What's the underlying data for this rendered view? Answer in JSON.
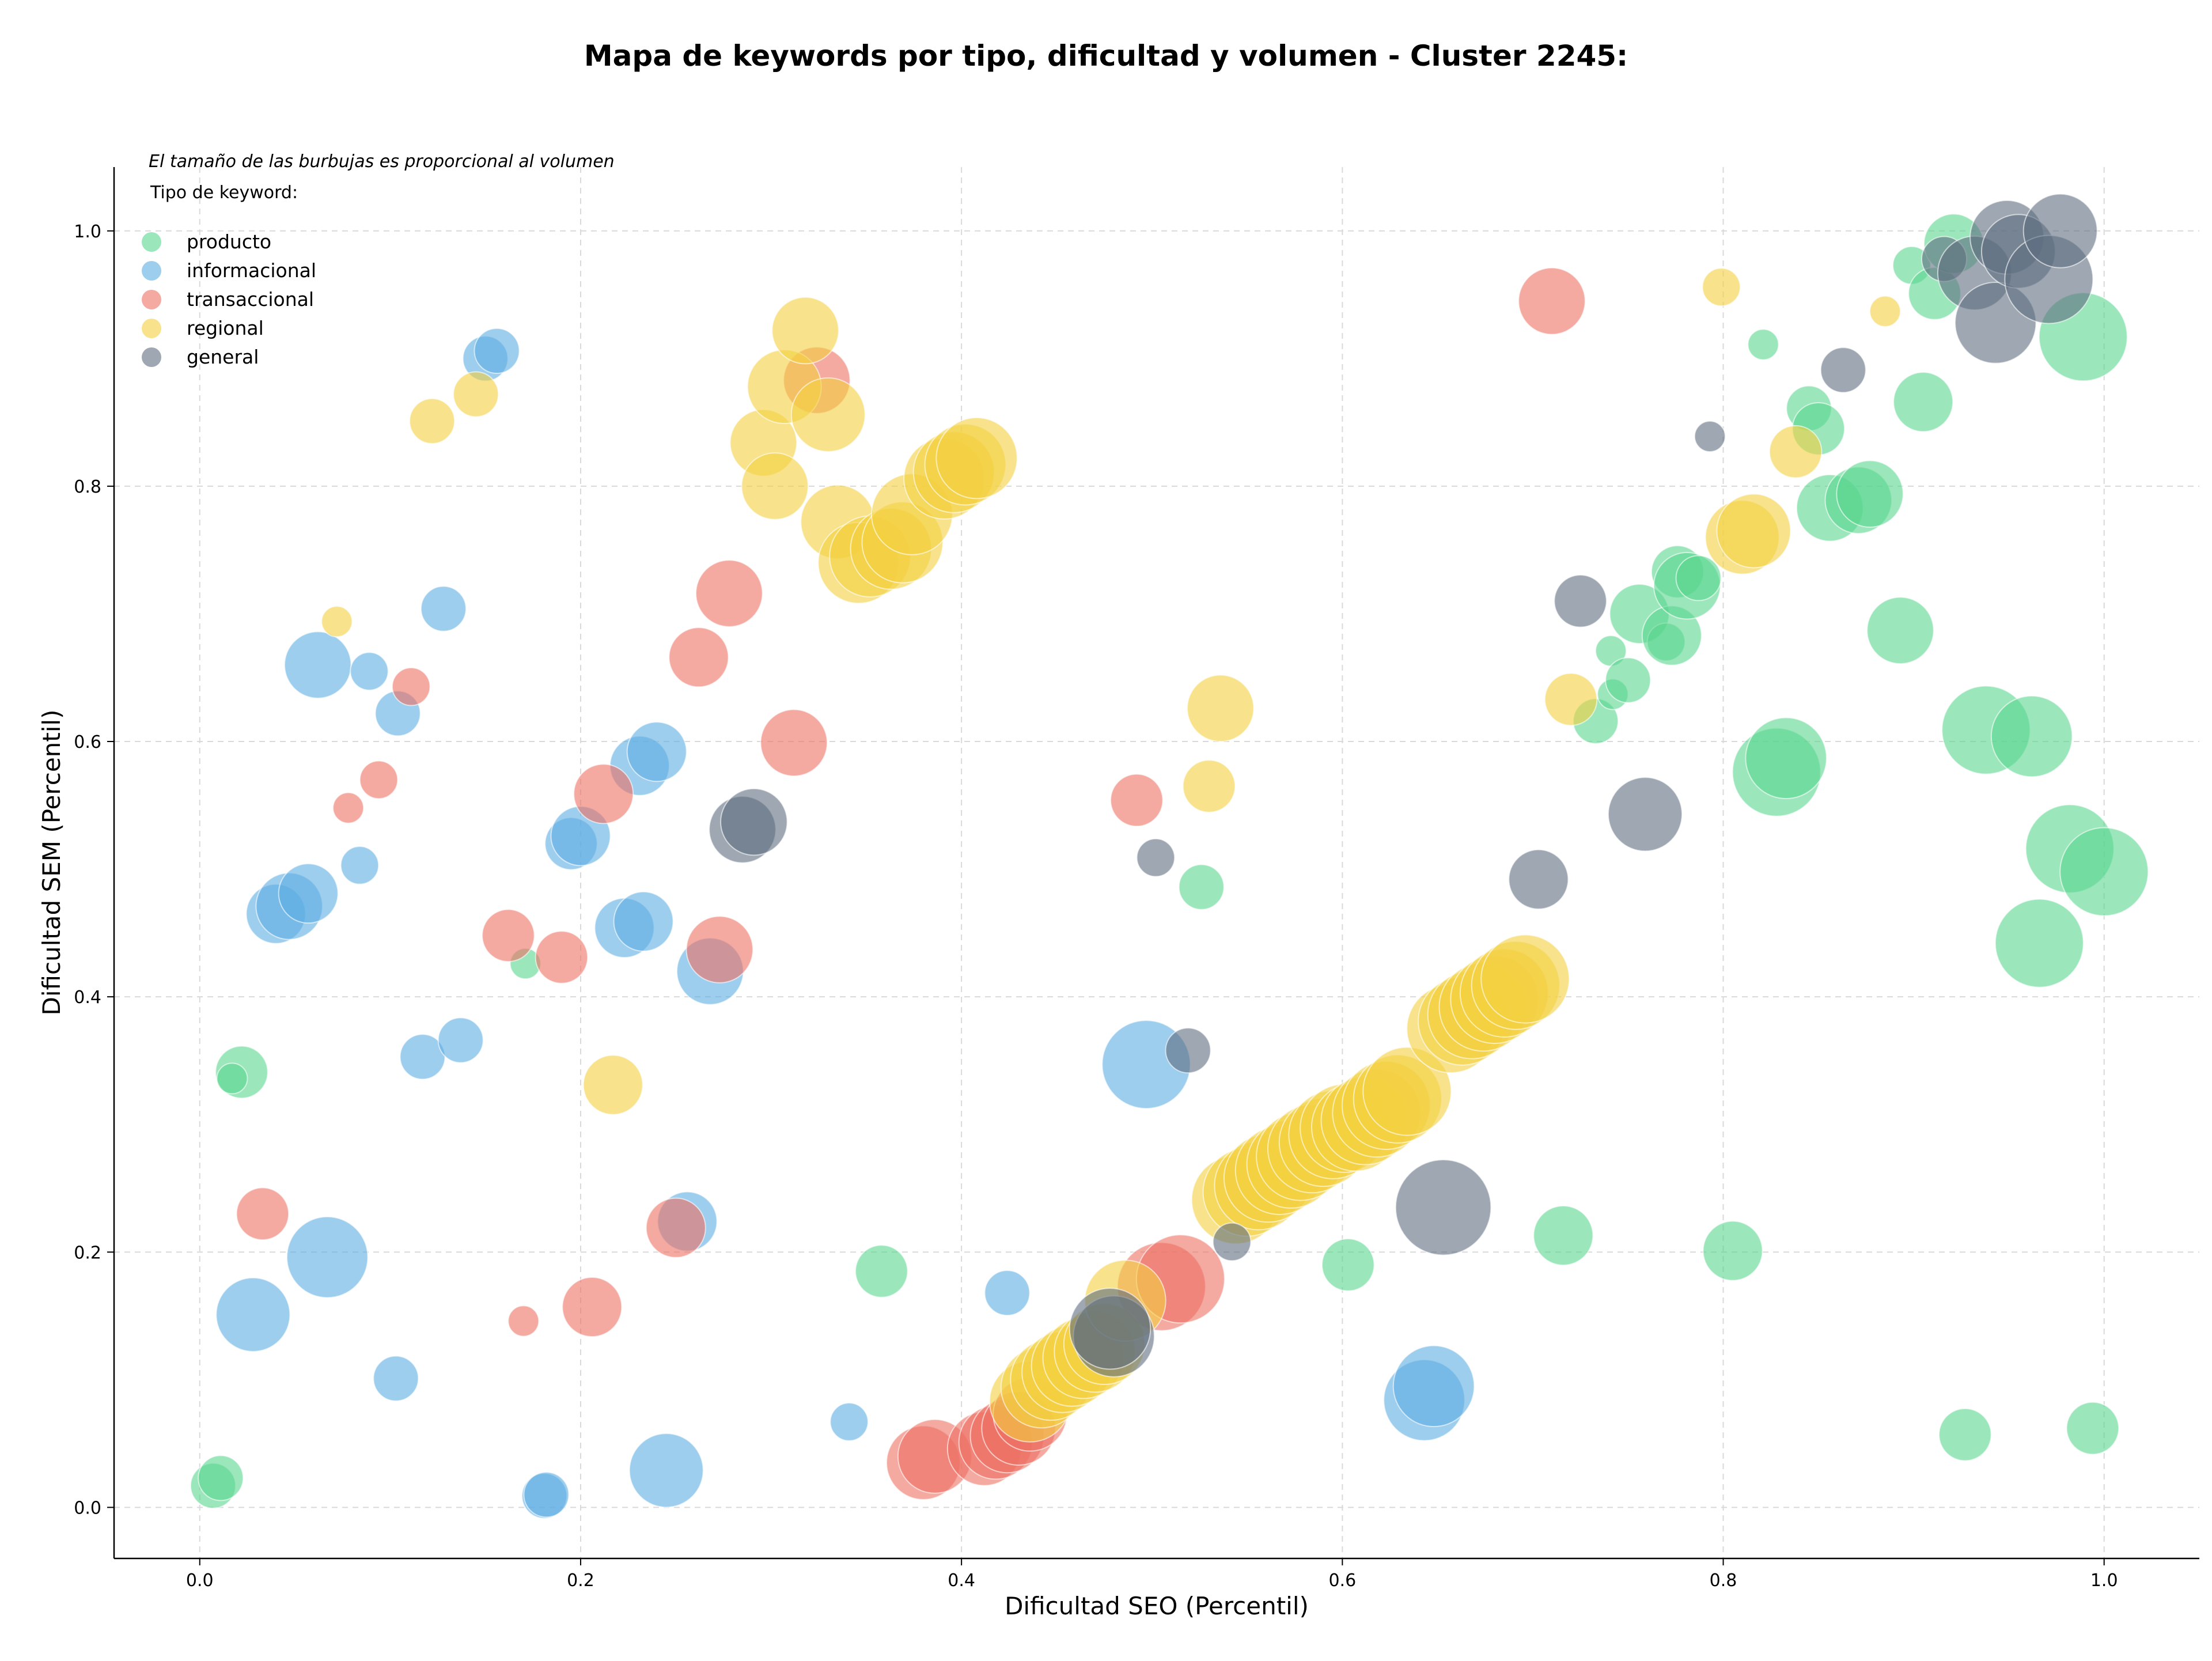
{
  "chart_data": {
    "type": "scatter",
    "title": "Mapa de keywords por tipo, dificultad y volumen - Cluster 2245:",
    "xlabel": "Dificultad SEO (Percentil)",
    "ylabel": "Dificultad SEM (Percentil)",
    "xlim": [
      -0.045,
      1.05
    ],
    "ylim": [
      -0.04,
      1.05
    ],
    "xticks": [
      "0.0",
      "0.2",
      "0.4",
      "0.6",
      "0.8",
      "1.0"
    ],
    "yticks": [
      "0.0",
      "0.2",
      "0.4",
      "0.6",
      "0.8",
      "1.0"
    ],
    "grid": true,
    "annotation": "El tamaño de las burbujas es proporcional al volumen",
    "legend_title": "Tipo de keyword:",
    "legend_position": "top-left",
    "series": [
      {
        "name": "producto",
        "color": "#58d68d",
        "points": [
          [
            0.007,
            0.017,
            2
          ],
          [
            0.011,
            0.023,
            2
          ],
          [
            0.022,
            0.341,
            2.5
          ],
          [
            0.017,
            0.336,
            1
          ],
          [
            0.171,
            0.426,
            1
          ],
          [
            0.358,
            0.185,
            2.5
          ],
          [
            0.526,
            0.486,
            2
          ],
          [
            0.603,
            0.19,
            2.5
          ],
          [
            0.716,
            0.213,
            3
          ],
          [
            0.733,
            0.616,
            2
          ],
          [
            0.741,
            0.671,
            1
          ],
          [
            0.742,
            0.637,
            1
          ],
          [
            0.75,
            0.648,
            2
          ],
          [
            0.756,
            0.7,
            3
          ],
          [
            0.77,
            0.678,
            1.5
          ],
          [
            0.773,
            0.683,
            3
          ],
          [
            0.776,
            0.733,
            2.5
          ],
          [
            0.781,
            0.722,
            3.5
          ],
          [
            0.787,
            0.728,
            2
          ],
          [
            0.805,
            0.201,
            3
          ],
          [
            0.821,
            0.911,
            1
          ],
          [
            0.828,
            0.576,
            5
          ],
          [
            0.833,
            0.587,
            4.5
          ],
          [
            0.845,
            0.861,
            2
          ],
          [
            0.85,
            0.845,
            2.5
          ],
          [
            0.856,
            0.783,
            3.5
          ],
          [
            0.871,
            0.789,
            3.5
          ],
          [
            0.877,
            0.794,
            3.5
          ],
          [
            0.893,
            0.687,
            3.5
          ],
          [
            0.899,
            0.973,
            1.5
          ],
          [
            0.905,
            0.866,
            3
          ],
          [
            0.911,
            0.951,
            2.5
          ],
          [
            0.921,
            0.99,
            3
          ],
          [
            0.927,
            0.057,
            2.5
          ],
          [
            0.938,
            0.609,
            5
          ],
          [
            0.962,
            0.604,
            4.5
          ],
          [
            0.966,
            0.442,
            5
          ],
          [
            0.982,
            0.516,
            5
          ],
          [
            0.989,
            0.917,
            5
          ],
          [
            0.994,
            0.062,
            2.5
          ],
          [
            1.0,
            0.498,
            5
          ]
        ]
      },
      {
        "name": "informacional",
        "color": "#5dade2",
        "points": [
          [
            0.028,
            0.151,
            4
          ],
          [
            0.04,
            0.465,
            3
          ],
          [
            0.047,
            0.471,
            3.5
          ],
          [
            0.057,
            0.481,
            3
          ],
          [
            0.062,
            0.66,
            3.5
          ],
          [
            0.067,
            0.196,
            4.5
          ],
          [
            0.084,
            0.503,
            1.5
          ],
          [
            0.089,
            0.655,
            1.5
          ],
          [
            0.103,
            0.101,
            2
          ],
          [
            0.104,
            0.622,
            2
          ],
          [
            0.128,
            0.704,
            2
          ],
          [
            0.117,
            0.353,
            2
          ],
          [
            0.137,
            0.366,
            2
          ],
          [
            0.15,
            0.9,
            2
          ],
          [
            0.156,
            0.906,
            2
          ],
          [
            0.181,
            0.009,
            2
          ],
          [
            0.182,
            0.01,
            2
          ],
          [
            0.195,
            0.52,
            2.5
          ],
          [
            0.2,
            0.526,
            3
          ],
          [
            0.223,
            0.454,
            3
          ],
          [
            0.231,
            0.581,
            3
          ],
          [
            0.233,
            0.459,
            3
          ],
          [
            0.24,
            0.592,
            3
          ],
          [
            0.245,
            0.029,
            4
          ],
          [
            0.256,
            0.224,
            3
          ],
          [
            0.268,
            0.42,
            3.5
          ],
          [
            0.341,
            0.067,
            1.5
          ],
          [
            0.424,
            0.168,
            2
          ],
          [
            0.497,
            0.347,
            5
          ],
          [
            0.643,
            0.084,
            4.5
          ],
          [
            0.648,
            0.095,
            4.5
          ]
        ]
      },
      {
        "name": "transaccional",
        "color": "#ec7063",
        "points": [
          [
            0.033,
            0.23,
            2.5
          ],
          [
            0.078,
            0.548,
            1
          ],
          [
            0.094,
            0.57,
            1.5
          ],
          [
            0.111,
            0.643,
            1.5
          ],
          [
            0.162,
            0.448,
            2.5
          ],
          [
            0.17,
            0.146,
            1
          ],
          [
            0.19,
            0.431,
            2.5
          ],
          [
            0.206,
            0.157,
            3
          ],
          [
            0.212,
            0.559,
            3
          ],
          [
            0.25,
            0.219,
            3
          ],
          [
            0.262,
            0.666,
            3
          ],
          [
            0.273,
            0.437,
            3.5
          ],
          [
            0.278,
            0.716,
            3.5
          ],
          [
            0.312,
            0.599,
            3.5
          ],
          [
            0.324,
            0.883,
            3.5
          ],
          [
            0.38,
            0.035,
            4
          ],
          [
            0.386,
            0.04,
            4
          ],
          [
            0.412,
            0.046,
            4
          ],
          [
            0.418,
            0.051,
            4
          ],
          [
            0.424,
            0.056,
            4
          ],
          [
            0.43,
            0.062,
            4
          ],
          [
            0.436,
            0.073,
            4
          ],
          [
            0.492,
            0.554,
            2.5
          ],
          [
            0.505,
            0.173,
            5
          ],
          [
            0.515,
            0.179,
            5
          ],
          [
            0.71,
            0.945,
            3.5
          ]
        ]
      },
      {
        "name": "regional",
        "color": "#f4d03f",
        "points": [
          [
            0.072,
            0.694,
            1
          ],
          [
            0.122,
            0.851,
            2
          ],
          [
            0.145,
            0.872,
            2
          ],
          [
            0.217,
            0.331,
            3
          ],
          [
            0.296,
            0.834,
            3.5
          ],
          [
            0.302,
            0.8,
            3.5
          ],
          [
            0.307,
            0.878,
            4
          ],
          [
            0.318,
            0.922,
            3.5
          ],
          [
            0.33,
            0.856,
            4
          ],
          [
            0.335,
            0.772,
            4
          ],
          [
            0.346,
            0.74,
            4.5
          ],
          [
            0.352,
            0.745,
            4.5
          ],
          [
            0.363,
            0.751,
            4.5
          ],
          [
            0.369,
            0.756,
            4.5
          ],
          [
            0.374,
            0.778,
            4.5
          ],
          [
            0.391,
            0.806,
            4.5
          ],
          [
            0.396,
            0.811,
            4.5
          ],
          [
            0.402,
            0.817,
            4.5
          ],
          [
            0.408,
            0.822,
            4.5
          ],
          [
            0.436,
            0.083,
            4.5
          ],
          [
            0.442,
            0.094,
            4.5
          ],
          [
            0.447,
            0.1,
            4.5
          ],
          [
            0.453,
            0.106,
            4.5
          ],
          [
            0.458,
            0.111,
            4.5
          ],
          [
            0.464,
            0.117,
            4.5
          ],
          [
            0.47,
            0.122,
            4.5
          ],
          [
            0.475,
            0.128,
            4.5
          ],
          [
            0.486,
            0.162,
            4.5
          ],
          [
            0.53,
            0.565,
            2.5
          ],
          [
            0.536,
            0.626,
            3.5
          ],
          [
            0.544,
            0.241,
            5
          ],
          [
            0.55,
            0.247,
            5
          ],
          [
            0.556,
            0.252,
            5
          ],
          [
            0.561,
            0.258,
            5
          ],
          [
            0.567,
            0.264,
            5
          ],
          [
            0.573,
            0.269,
            5
          ],
          [
            0.578,
            0.275,
            5
          ],
          [
            0.584,
            0.281,
            5
          ],
          [
            0.59,
            0.286,
            5
          ],
          [
            0.595,
            0.292,
            5
          ],
          [
            0.601,
            0.297,
            5
          ],
          [
            0.607,
            0.298,
            5
          ],
          [
            0.612,
            0.303,
            5
          ],
          [
            0.618,
            0.309,
            5
          ],
          [
            0.623,
            0.315,
            5
          ],
          [
            0.629,
            0.32,
            5
          ],
          [
            0.634,
            0.326,
            5
          ],
          [
            0.657,
            0.375,
            5
          ],
          [
            0.663,
            0.381,
            5
          ],
          [
            0.668,
            0.386,
            5
          ],
          [
            0.674,
            0.392,
            5
          ],
          [
            0.68,
            0.398,
            5
          ],
          [
            0.685,
            0.403,
            5
          ],
          [
            0.691,
            0.409,
            5
          ],
          [
            0.696,
            0.414,
            5
          ],
          [
            0.72,
            0.633,
            2.5
          ],
          [
            0.799,
            0.956,
            1.5
          ],
          [
            0.81,
            0.76,
            4
          ],
          [
            0.816,
            0.765,
            4
          ],
          [
            0.838,
            0.827,
            2.5
          ],
          [
            0.885,
            0.937,
            1
          ]
        ]
      },
      {
        "name": "general",
        "color": "#5d6d7e",
        "points": [
          [
            0.285,
            0.531,
            3.5
          ],
          [
            0.291,
            0.537,
            3.5
          ],
          [
            0.48,
            0.134,
            4.5
          ],
          [
            0.478,
            0.14,
            4.5
          ],
          [
            0.502,
            0.509,
            1.5
          ],
          [
            0.519,
            0.358,
            2
          ],
          [
            0.542,
            0.208,
            1.5
          ],
          [
            0.653,
            0.235,
            5.5
          ],
          [
            0.703,
            0.492,
            3
          ],
          [
            0.725,
            0.71,
            2.5
          ],
          [
            0.759,
            0.543,
            4
          ],
          [
            0.793,
            0.839,
            1
          ],
          [
            0.863,
            0.891,
            2
          ],
          [
            0.916,
            0.978,
            2
          ],
          [
            0.932,
            0.967,
            4
          ],
          [
            0.943,
            0.928,
            4.5
          ],
          [
            0.949,
            0.995,
            4
          ],
          [
            0.955,
            0.984,
            4
          ],
          [
            0.971,
            0.962,
            5
          ],
          [
            0.977,
            1.0,
            4
          ]
        ]
      }
    ]
  }
}
